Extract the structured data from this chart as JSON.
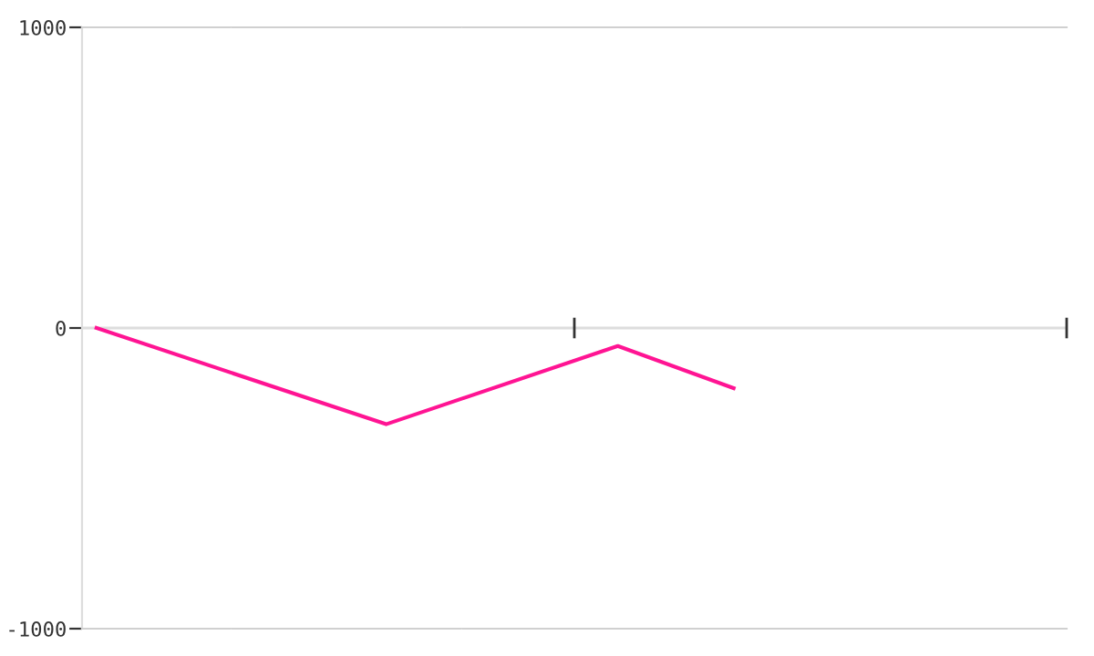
{
  "chart_data": {
    "type": "line",
    "categories": [
      null,
      null,
      null,
      null,
      null,
      null,
      null,
      null,
      null,
      null,
      null,
      null,
      null,
      null,
      null,
      null,
      null,
      null,
      null,
      null,
      null,
      null,
      null,
      null,
      null,
      null,
      null,
      null,
      null,
      null,
      null,
      null,
      null,
      null
    ],
    "series": [
      {
        "color": "#ff1493",
        "values": [
          0,
          null,
          null,
          null,
          null,
          null,
          null,
          null,
          null,
          null,
          -320,
          null,
          null,
          null,
          null,
          null,
          null,
          null,
          -60,
          null,
          null,
          null,
          -200,
          null,
          null,
          null,
          null,
          null,
          null,
          null,
          null,
          null,
          null,
          null
        ]
      }
    ],
    "ylim": [
      -1000,
      1000
    ],
    "yticks": [
      -1000,
      0,
      1000
    ],
    "ref_lines": [
      {
        "axis": "y",
        "value": 0,
        "color": "#dddddd"
      }
    ],
    "tick_labels": "y",
    "marker": "none",
    "line_style": "solid",
    "legend": false
  }
}
